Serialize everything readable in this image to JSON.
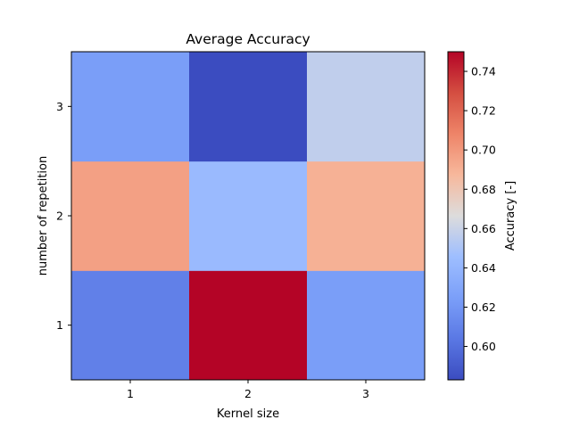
{
  "chart_data": {
    "type": "heatmap",
    "title": "Average Accuracy",
    "xlabel": "Kernel size",
    "ylabel": "number of repetition",
    "x_categories": [
      "1",
      "2",
      "3"
    ],
    "y_categories": [
      "1",
      "2",
      "3"
    ],
    "values": [
      [
        0.608,
        0.75,
        0.624
      ],
      [
        0.697,
        0.643,
        0.69
      ],
      [
        0.624,
        0.583,
        0.657
      ]
    ],
    "colormap": "coolwarm",
    "colorbar": {
      "label": "Accuracy [-]",
      "vmin": 0.583,
      "vmax": 0.75,
      "ticks": [
        "0.60",
        "0.62",
        "0.64",
        "0.66",
        "0.68",
        "0.70",
        "0.72",
        "0.74"
      ]
    }
  }
}
